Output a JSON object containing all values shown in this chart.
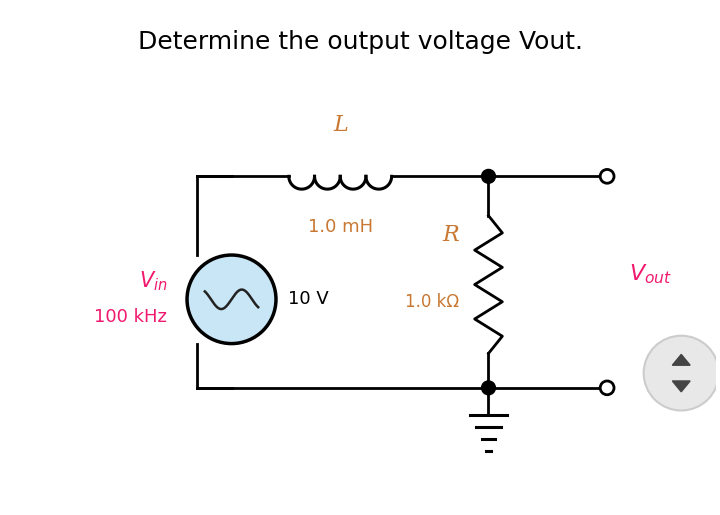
{
  "title": "Determine the output voltage Vout.",
  "title_fontsize": 18,
  "background_color": "#ffffff",
  "circuit": {
    "source_color": "#c8e6f5",
    "wire_color": "#000000",
    "line_width": 2.0,
    "inductor_label": "L",
    "inductor_value": "1.0 mH",
    "resistor_label": "R",
    "resistor_value": "1.0 kΩ",
    "source_label_volt": "10 V",
    "label_color_pink": "#f0196e",
    "label_color_orange": "#c87832",
    "label_color_black": "#000000",
    "label_color_dark": "#555555"
  }
}
